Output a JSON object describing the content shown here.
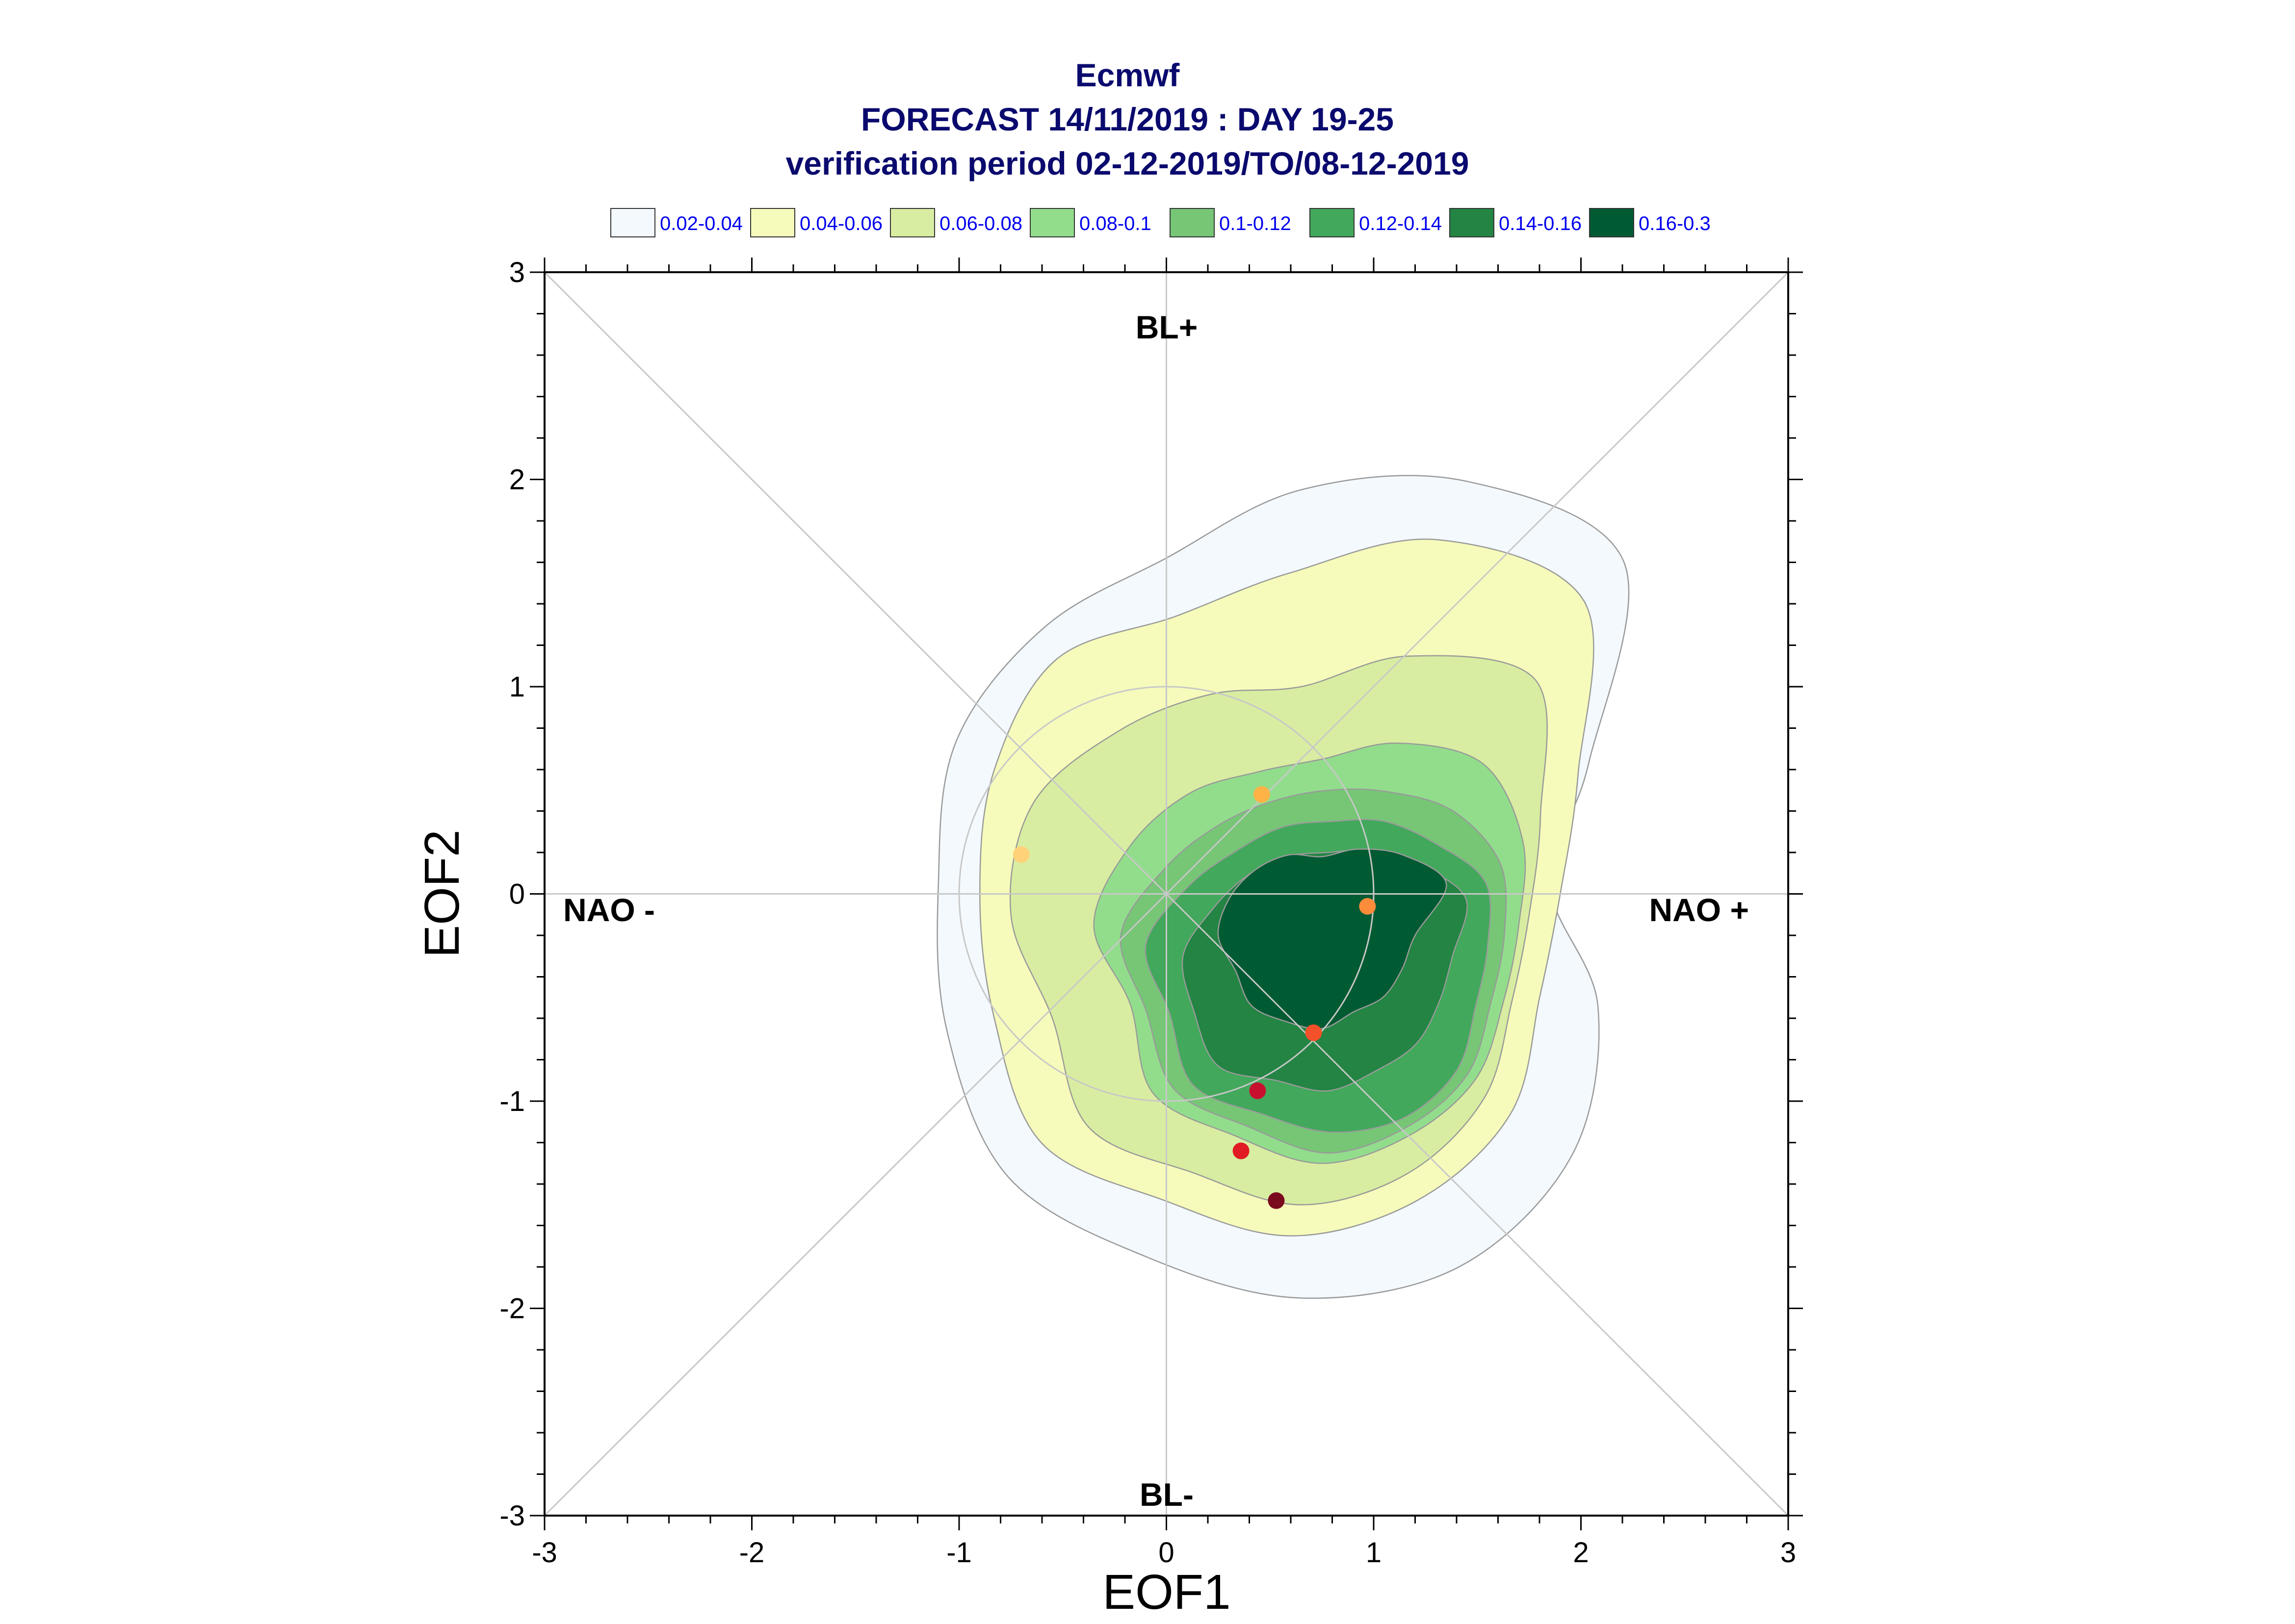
{
  "chart_data": {
    "type": "scatter",
    "title": "Ecmwf",
    "subtitle": "FORECAST 14/11/2019 : DAY 19-25",
    "subtitle2": "verification period 02-12-2019/TO/08-12-2019",
    "xlabel": "EOF1",
    "ylabel": "EOF2",
    "xlim": [
      -3,
      3
    ],
    "ylim": [
      -3,
      3
    ],
    "xticks": [
      "-3",
      "-2",
      "-1",
      "0",
      "1",
      "2",
      "3"
    ],
    "yticks": [
      "-3",
      "-2",
      "-1",
      "0",
      "1",
      "2",
      "3"
    ],
    "grid": false,
    "regime_labels": {
      "top": "BL+",
      "bottom": "BL-",
      "left": "NAO -",
      "right": "NAO +"
    },
    "legend_position": "top",
    "density_levels": [
      {
        "label": "0.02-0.04",
        "color": "#f3f9fd"
      },
      {
        "label": "0.04-0.06",
        "color": "#f6fbbb"
      },
      {
        "label": "0.06-0.08",
        "color": "#d8eda1"
      },
      {
        "label": "0.08-0.1",
        "color": "#92dd8c"
      },
      {
        "label": "0.1-0.12",
        "color": "#76c676"
      },
      {
        "label": "0.12-0.14",
        "color": "#42a85b"
      },
      {
        "label": "0.14-0.16",
        "color": "#238443"
      },
      {
        "label": "0.16-0.3",
        "color": "#005a32"
      }
    ],
    "points": [
      {
        "x": -0.7,
        "y": 0.19,
        "color": "#ffd27a"
      },
      {
        "x": 0.46,
        "y": 0.48,
        "color": "#ffb347"
      },
      {
        "x": 0.97,
        "y": -0.06,
        "color": "#ff8c3a"
      },
      {
        "x": 0.71,
        "y": -0.67,
        "color": "#f4502a"
      },
      {
        "x": 0.44,
        "y": -0.95,
        "color": "#c8102e"
      },
      {
        "x": 0.36,
        "y": -1.24,
        "color": "#e01b24"
      },
      {
        "x": 0.53,
        "y": -1.48,
        "color": "#7a0a1e"
      }
    ]
  }
}
